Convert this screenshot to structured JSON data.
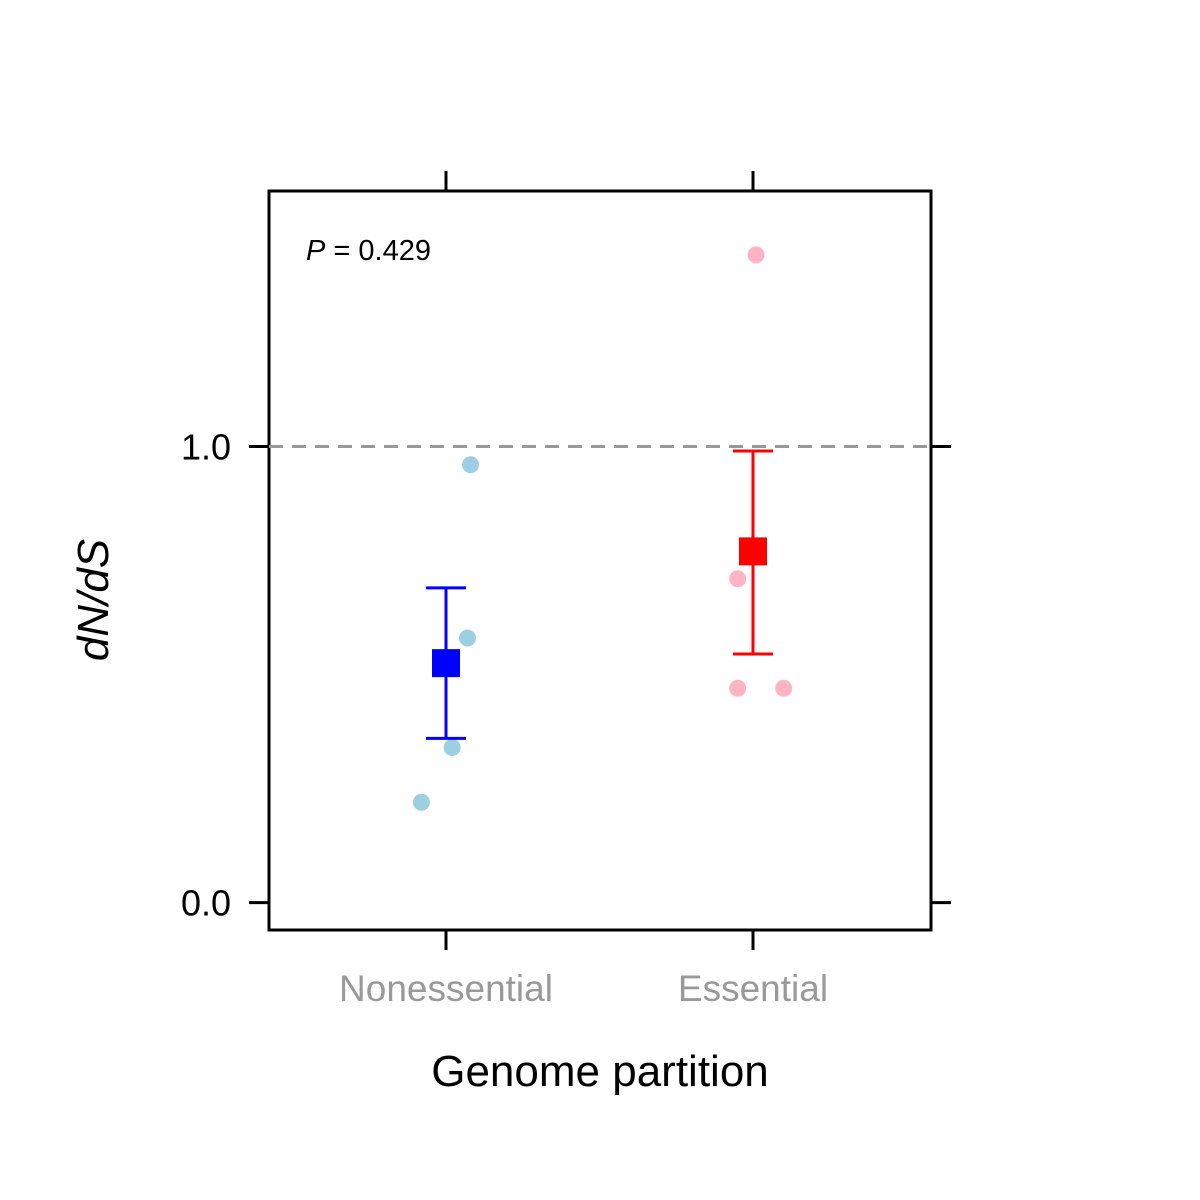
{
  "chart_data": {
    "type": "scatter",
    "title": "",
    "xlabel": "Genome partition",
    "ylabel_parts": [
      "d",
      "N",
      "/",
      "d",
      "S"
    ],
    "categories": [
      "Nonessential",
      "Essential"
    ],
    "ylim": [
      -0.06,
      1.56
    ],
    "yticks": [
      0.0,
      1.0
    ],
    "ytick_labels": [
      "0.0",
      "1.0"
    ],
    "reference_line": {
      "y": 1.0,
      "style": "dashed",
      "color": "#999999"
    },
    "annotation": {
      "p_symbol": "P",
      "rest": " = 0.429"
    },
    "grid": false,
    "series": [
      {
        "category": "Nonessential",
        "point_color": "#9dcfe3",
        "summary_color": "#0000ff",
        "points": [
          {
            "x": 0.92,
            "y": 0.22
          },
          {
            "x": 1.02,
            "y": 0.34
          },
          {
            "x": 1.07,
            "y": 0.58
          },
          {
            "x": 1.08,
            "y": 0.96
          }
        ],
        "mean": 0.525,
        "error_low": 0.36,
        "error_high": 0.69
      },
      {
        "category": "Essential",
        "point_color": "#ffb3c5",
        "summary_color": "#ff0000",
        "points": [
          {
            "x": 1.95,
            "y": 0.71
          },
          {
            "x": 1.95,
            "y": 0.47
          },
          {
            "x": 2.1,
            "y": 0.47
          },
          {
            "x": 2.01,
            "y": 1.42
          }
        ],
        "mean": 0.77,
        "error_low": 0.545,
        "error_high": 0.99
      }
    ]
  }
}
